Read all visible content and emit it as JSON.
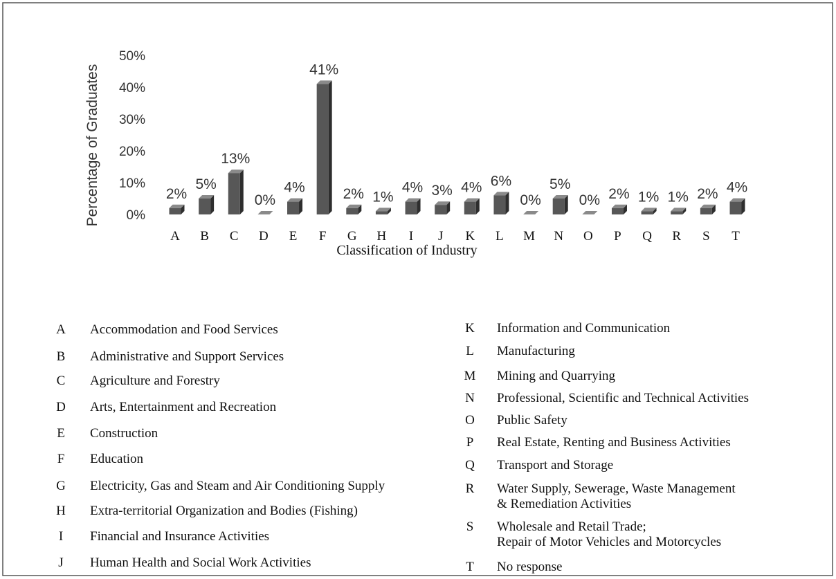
{
  "chart_data": {
    "type": "bar",
    "y_axis_label": "Percentage of Graduates",
    "x_axis_label": "Classification of Industry",
    "categories": [
      "A",
      "B",
      "C",
      "D",
      "E",
      "F",
      "G",
      "H",
      "I",
      "J",
      "K",
      "L",
      "M",
      "N",
      "O",
      "P",
      "Q",
      "R",
      "S",
      "T"
    ],
    "values": [
      2,
      5,
      13,
      0,
      4,
      41,
      2,
      1,
      4,
      3,
      4,
      6,
      0,
      5,
      0,
      2,
      1,
      1,
      2,
      4
    ],
    "value_labels": [
      "2%",
      "5%",
      "13%",
      "0%",
      "4%",
      "41%",
      "2%",
      "1%",
      "4%",
      "3%",
      "4%",
      "6%",
      "0%",
      "5%",
      "0%",
      "2%",
      "1%",
      "1%",
      "2%",
      "4%"
    ],
    "color": "#575757",
    "ylim": [
      0,
      50
    ],
    "yticks": [
      {
        "value": 0,
        "label": "0%"
      },
      {
        "value": 10,
        "label": "10%"
      },
      {
        "value": 20,
        "label": "20%"
      },
      {
        "value": 30,
        "label": "30%"
      },
      {
        "value": 40,
        "label": "40%"
      },
      {
        "value": 50,
        "label": "50%"
      }
    ]
  },
  "legend": {
    "left": [
      {
        "code": "A",
        "lines": [
          "Accommodation and Food Services"
        ]
      },
      {
        "code": "B",
        "lines": [
          "Administrative and Support Services"
        ]
      },
      {
        "code": "C",
        "lines": [
          "Agriculture and Forestry"
        ]
      },
      {
        "code": "D",
        "lines": [
          "Arts, Entertainment and Recreation"
        ]
      },
      {
        "code": "E",
        "lines": [
          "Construction"
        ]
      },
      {
        "code": "F",
        "lines": [
          "Education"
        ]
      },
      {
        "code": "G",
        "lines": [
          "Electricity, Gas and Steam and Air Conditioning Supply"
        ]
      },
      {
        "code": "H",
        "lines": [
          "Extra-territorial Organization and Bodies (Fishing)"
        ]
      },
      {
        "code": "I",
        "lines": [
          "Financial and Insurance Activities"
        ]
      },
      {
        "code": "J",
        "lines": [
          "Human Health and Social Work Activities"
        ]
      }
    ],
    "right": [
      {
        "code": "K",
        "lines": [
          "Information and Communication"
        ]
      },
      {
        "code": "L",
        "lines": [
          "Manufacturing"
        ]
      },
      {
        "code": "M",
        "lines": [
          "Mining and Quarrying"
        ]
      },
      {
        "code": "N",
        "lines": [
          "Professional, Scientific and Technical Activities"
        ]
      },
      {
        "code": "O",
        "lines": [
          "Public Safety"
        ]
      },
      {
        "code": "P",
        "lines": [
          "Real Estate, Renting and Business Activities"
        ]
      },
      {
        "code": "Q",
        "lines": [
          "Transport and Storage"
        ]
      },
      {
        "code": "R",
        "lines": [
          "Water Supply, Sewerage, Waste Management",
          "& Remediation Activities"
        ]
      },
      {
        "code": "S",
        "lines": [
          "Wholesale and Retail Trade;",
          "Repair of Motor Vehicles and Motorcycles"
        ]
      },
      {
        "code": "T",
        "lines": [
          "No response"
        ]
      }
    ]
  }
}
